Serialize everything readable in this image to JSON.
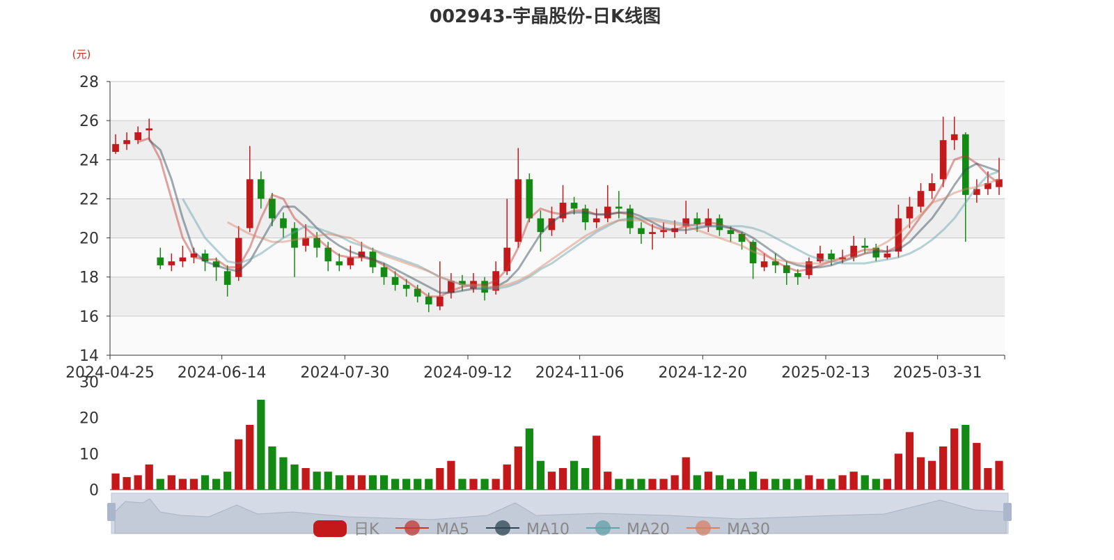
{
  "chart_data": [
    {
      "type": "candlestick",
      "title": "002943-宇晶股份-日K线图",
      "y_unit": "(元)",
      "name": "日K",
      "up_color": "#c4191a",
      "down_color": "#138a13",
      "categories": [
        "2024-04-25",
        null,
        null,
        null,
        null,
        null,
        null,
        null,
        null,
        null,
        "2024-06-14",
        null,
        null,
        null,
        null,
        null,
        null,
        null,
        null,
        null,
        null,
        "2024-07-30",
        null,
        null,
        null,
        null,
        null,
        null,
        null,
        null,
        null,
        null,
        "2024-09-12",
        null,
        null,
        null,
        null,
        null,
        null,
        null,
        null,
        null,
        "2024-11-06",
        null,
        null,
        null,
        null,
        null,
        null,
        null,
        null,
        null,
        null,
        "2024-12-20",
        null,
        null,
        null,
        null,
        null,
        null,
        null,
        null,
        null,
        null,
        "2025-02-13",
        null,
        null,
        null,
        null,
        null,
        null,
        null,
        null,
        null,
        "2025-03-31",
        null,
        null,
        null,
        null,
        null
      ],
      "open": [
        24.4,
        24.8,
        25.0,
        25.5,
        19.0,
        18.6,
        18.8,
        19.0,
        19.2,
        18.8,
        18.3,
        18.0,
        20.5,
        23.0,
        22.0,
        21.0,
        20.5,
        19.6,
        20.0,
        19.5,
        18.8,
        18.6,
        19.0,
        19.3,
        18.5,
        18.0,
        17.6,
        17.4,
        17.0,
        16.5,
        17.2,
        17.8,
        17.4,
        17.8,
        17.3,
        18.3,
        19.8,
        23.0,
        21.0,
        20.4,
        21.0,
        21.8,
        21.5,
        20.8,
        21.0,
        21.6,
        21.5,
        20.5,
        20.2,
        20.3,
        20.3,
        20.6,
        21.0,
        20.6,
        21.0,
        20.4,
        20.2,
        19.8,
        18.5,
        18.8,
        18.6,
        18.2,
        18.1,
        18.8,
        19.2,
        18.9,
        19.0,
        19.6,
        19.5,
        19.0,
        19.3,
        21.0,
        21.6,
        22.4,
        23.0,
        25.0,
        25.3,
        22.2,
        22.5,
        22.6
      ],
      "high": [
        25.3,
        25.4,
        25.7,
        26.1,
        19.5,
        19.2,
        19.6,
        19.5,
        19.4,
        19.0,
        18.6,
        20.6,
        24.7,
        23.4,
        22.3,
        21.3,
        20.8,
        20.7,
        20.3,
        19.8,
        19.2,
        19.6,
        19.8,
        19.5,
        18.7,
        18.3,
        17.9,
        17.6,
        17.2,
        18.8,
        18.2,
        18.1,
        18.2,
        18.0,
        18.8,
        22.0,
        24.6,
        23.3,
        21.4,
        21.6,
        22.7,
        22.1,
        21.7,
        21.5,
        22.7,
        22.4,
        21.7,
        20.8,
        20.7,
        20.8,
        20.9,
        21.9,
        21.3,
        21.5,
        21.2,
        20.6,
        20.3,
        19.9,
        19.2,
        19.2,
        18.8,
        18.4,
        19.0,
        19.6,
        19.4,
        19.4,
        20.1,
        20.0,
        19.7,
        19.6,
        21.7,
        22.1,
        22.8,
        23.3,
        26.2,
        26.2,
        25.4,
        23.0,
        23.4,
        24.1
      ],
      "low": [
        24.3,
        24.5,
        24.8,
        25.0,
        18.4,
        18.3,
        18.5,
        18.7,
        18.3,
        17.8,
        17.0,
        17.8,
        20.3,
        21.5,
        20.6,
        20.0,
        18.0,
        19.3,
        19.0,
        18.3,
        18.3,
        18.4,
        18.8,
        18.2,
        17.6,
        17.3,
        17.0,
        16.7,
        16.2,
        16.3,
        16.9,
        17.3,
        17.2,
        16.8,
        17.1,
        18.1,
        19.5,
        20.8,
        19.3,
        20.1,
        20.8,
        21.2,
        20.4,
        20.5,
        20.8,
        21.0,
        20.2,
        19.7,
        19.4,
        20.0,
        20.0,
        20.2,
        20.3,
        20.3,
        20.1,
        19.8,
        19.4,
        17.9,
        18.3,
        18.2,
        17.6,
        17.6,
        17.9,
        18.7,
        18.6,
        18.7,
        18.8,
        19.2,
        18.8,
        18.9,
        19.0,
        20.5,
        21.3,
        22.0,
        22.6,
        24.5,
        19.8,
        21.8,
        22.2,
        22.2
      ],
      "close": [
        24.8,
        25.0,
        25.4,
        25.6,
        18.6,
        18.8,
        19.0,
        19.2,
        18.8,
        18.5,
        17.6,
        20.0,
        23.0,
        22.0,
        21.0,
        20.5,
        19.5,
        20.0,
        19.5,
        18.8,
        18.6,
        19.0,
        19.3,
        18.5,
        18.0,
        17.6,
        17.4,
        17.0,
        16.6,
        17.0,
        17.8,
        17.6,
        17.8,
        17.2,
        18.3,
        19.5,
        23.0,
        21.0,
        20.3,
        21.0,
        21.8,
        21.5,
        20.8,
        21.0,
        21.6,
        21.5,
        20.5,
        20.2,
        20.3,
        20.4,
        20.5,
        21.0,
        20.7,
        21.0,
        20.4,
        20.2,
        19.8,
        18.7,
        18.8,
        18.6,
        18.2,
        18.0,
        18.8,
        19.2,
        18.9,
        19.0,
        19.6,
        19.5,
        19.0,
        19.2,
        21.0,
        21.6,
        22.4,
        22.8,
        25.0,
        25.3,
        22.2,
        22.5,
        22.8,
        23.0
      ],
      "series": [
        {
          "name": "MA5",
          "color": "#c23531",
          "values": [
            null,
            null,
            24.9,
            25.1,
            24.0,
            22.0,
            20.0,
            19.0,
            18.9,
            18.9,
            18.5,
            18.5,
            19.5,
            21.0,
            22.2,
            22.0,
            21.0,
            20.5,
            20.0,
            19.5,
            19.1,
            19.0,
            19.0,
            18.9,
            18.6,
            18.2,
            17.8,
            17.4,
            17.0,
            17.0,
            17.3,
            17.5,
            17.6,
            17.6,
            17.8,
            18.4,
            19.5,
            21.0,
            21.5,
            21.3,
            21.2,
            21.4,
            21.4,
            21.2,
            21.2,
            21.3,
            21.2,
            20.9,
            20.6,
            20.4,
            20.4,
            20.6,
            20.7,
            20.8,
            20.7,
            20.5,
            20.2,
            19.6,
            19.2,
            18.8,
            18.5,
            18.3,
            18.4,
            18.6,
            18.8,
            19.0,
            19.2,
            19.4,
            19.4,
            19.3,
            19.6,
            20.3,
            21.1,
            21.8,
            22.8,
            24.0,
            24.2,
            23.8,
            23.2,
            22.8
          ]
        },
        {
          "name": "MA10",
          "color": "#2f4554",
          "values": [
            null,
            null,
            null,
            25.0,
            24.5,
            23.0,
            21.0,
            19.3,
            18.8,
            18.6,
            18.4,
            18.3,
            18.8,
            19.8,
            20.8,
            21.6,
            21.6,
            21.1,
            20.5,
            20.0,
            19.6,
            19.3,
            19.1,
            18.9,
            18.7,
            18.4,
            18.1,
            17.8,
            17.5,
            17.2,
            17.2,
            17.3,
            17.4,
            17.4,
            17.5,
            17.8,
            18.4,
            19.3,
            20.2,
            20.8,
            21.2,
            21.3,
            21.3,
            21.2,
            21.2,
            21.3,
            21.3,
            21.1,
            20.8,
            20.5,
            20.4,
            20.4,
            20.5,
            20.6,
            20.6,
            20.5,
            20.3,
            20.0,
            19.6,
            19.2,
            18.8,
            18.6,
            18.5,
            18.5,
            18.6,
            18.8,
            19.0,
            19.2,
            19.3,
            19.3,
            19.4,
            19.8,
            20.4,
            21.0,
            21.8,
            22.7,
            23.5,
            23.8,
            23.6,
            23.4
          ]
        },
        {
          "name": "MA20",
          "color": "#61a0a8",
          "values": [
            null,
            null,
            null,
            null,
            null,
            null,
            22.0,
            21.0,
            20.0,
            19.4,
            18.8,
            18.7,
            18.9,
            19.2,
            19.6,
            20.0,
            20.3,
            20.6,
            20.5,
            20.3,
            20.1,
            19.8,
            19.6,
            19.4,
            19.2,
            19.0,
            18.8,
            18.6,
            18.3,
            18.0,
            17.8,
            17.6,
            17.5,
            17.4,
            17.4,
            17.5,
            17.7,
            18.0,
            18.4,
            18.7,
            19.1,
            19.5,
            19.9,
            20.3,
            20.6,
            20.9,
            21.0,
            21.0,
            21.0,
            20.9,
            20.8,
            20.7,
            20.6,
            20.6,
            20.6,
            20.6,
            20.6,
            20.5,
            20.3,
            20.0,
            19.7,
            19.4,
            19.1,
            18.9,
            18.8,
            18.7,
            18.7,
            18.7,
            18.8,
            18.9,
            19.0,
            19.2,
            19.5,
            19.9,
            20.4,
            21.0,
            21.8,
            22.6,
            23.2,
            23.4
          ]
        },
        {
          "name": "MA30",
          "color": "#d48265",
          "values": [
            null,
            null,
            null,
            null,
            null,
            null,
            null,
            null,
            null,
            null,
            20.8,
            20.5,
            20.2,
            20.0,
            19.8,
            19.8,
            19.9,
            20.0,
            20.1,
            20.2,
            20.1,
            20.0,
            19.7,
            19.4,
            19.1,
            18.9,
            18.7,
            18.5,
            18.3,
            18.0,
            17.8,
            17.6,
            17.6,
            17.5,
            17.5,
            17.6,
            17.8,
            18.1,
            18.5,
            18.9,
            19.3,
            19.7,
            20.1,
            20.4,
            20.7,
            20.9,
            20.9,
            20.9,
            20.9,
            20.8,
            20.7,
            20.6,
            20.4,
            20.2,
            20.0,
            19.8,
            19.6,
            19.3,
            19.1,
            18.9,
            18.8,
            18.7,
            18.7,
            18.7,
            18.8,
            18.9,
            19.0,
            19.2,
            19.5,
            19.8,
            20.2,
            20.7,
            21.2,
            21.8,
            22.0,
            22.3,
            22.5,
            22.6,
            22.8,
            23.0
          ]
        }
      ],
      "ylim": [
        14,
        28
      ],
      "yticks": [
        14,
        16,
        18,
        20,
        22,
        24,
        26,
        28
      ]
    },
    {
      "type": "bar",
      "values": [
        4.5,
        3.5,
        4,
        7,
        3,
        4,
        3,
        3,
        4,
        3,
        5,
        14,
        18,
        25,
        12,
        9,
        7,
        6,
        5,
        5,
        4,
        4,
        4,
        4,
        4,
        3,
        3,
        3,
        3,
        6,
        8,
        3,
        3,
        3,
        3,
        7,
        12,
        17,
        8,
        5,
        6,
        8,
        6,
        15,
        5,
        3,
        3,
        3,
        3,
        3,
        4,
        9,
        4,
        5,
        4,
        3,
        3,
        5,
        3,
        3,
        3,
        3,
        4,
        3,
        3,
        4,
        5,
        4,
        3,
        3,
        10,
        16,
        9,
        8,
        12,
        17,
        18,
        13,
        6,
        8
      ],
      "ylim": [
        0,
        30
      ],
      "yticks": [
        0,
        10,
        20,
        30
      ]
    }
  ]
}
